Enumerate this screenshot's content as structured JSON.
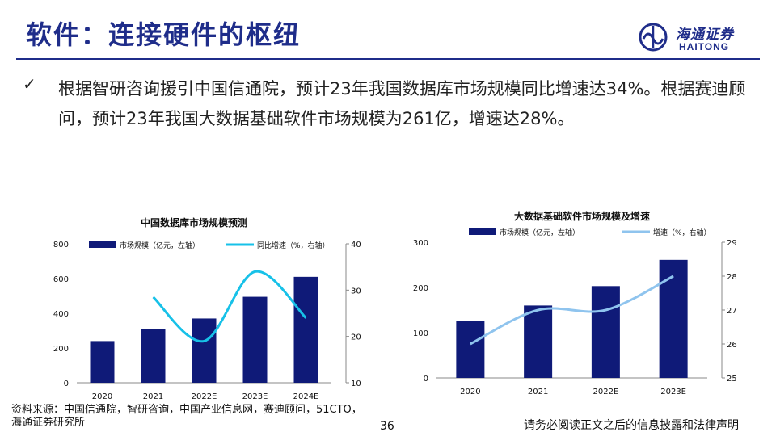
{
  "header": {
    "title": "软件：连接硬件的枢纽",
    "logo_cn": "海通证券",
    "logo_en": "HAITONG"
  },
  "bullet": {
    "mark": "✓",
    "text": "根据智研咨询援引中国信通院，预计23年我国数据库市场规模同比增速达34%。根据赛迪顾问，预计23年我国大数据基础软件市场规模为261亿，增速达28%。"
  },
  "chart_data": [
    {
      "type": "bar",
      "title": "中国数据库市场规模预测",
      "categories": [
        "2020",
        "2021",
        "2022E",
        "2023E",
        "2024E"
      ],
      "series": [
        {
          "name": "市场规模（亿元，左轴）",
          "type": "bar",
          "axis": "left",
          "values": [
            240,
            310,
            370,
            495,
            610
          ]
        },
        {
          "name": "同比增速（%，右轴）",
          "type": "line",
          "axis": "right",
          "values": [
            null,
            28.5,
            19,
            34,
            24
          ]
        }
      ],
      "y_left": {
        "min": 0,
        "max": 800,
        "ticks": [
          "0",
          "200",
          "400",
          "600",
          "800"
        ]
      },
      "y_right": {
        "min": 10,
        "max": 40,
        "ticks": [
          "10",
          "20",
          "30",
          "40"
        ]
      },
      "colors": {
        "bar": "#0f1a78",
        "line": "#17c1e8"
      },
      "legend": "top"
    },
    {
      "type": "bar",
      "title": "大数据基础软件市场规模及增速",
      "categories": [
        "2020",
        "2021",
        "2022E",
        "2023E"
      ],
      "series": [
        {
          "name": "市场规模（亿元，左轴）",
          "type": "bar",
          "axis": "left",
          "values": [
            126,
            160,
            203,
            261
          ]
        },
        {
          "name": "增速（%，右轴）",
          "type": "line",
          "axis": "right",
          "values": [
            26,
            27,
            27,
            28
          ]
        }
      ],
      "y_left": {
        "min": 0,
        "max": 300,
        "ticks": [
          "0",
          "100",
          "200",
          "300"
        ]
      },
      "y_right": {
        "min": 25,
        "max": 29,
        "ticks": [
          "25",
          "26",
          "27",
          "28",
          "29"
        ]
      },
      "colors": {
        "bar": "#0f1a78",
        "line": "#8fc4ee"
      },
      "legend": "top"
    }
  ],
  "footer": {
    "source": "资料来源：中国信通院，智研咨询，中国产业信息网，赛迪顾问，51CTO，海通证券研究所",
    "page": "36",
    "disclaimer": "请务必阅读正文之后的信息披露和法律声明"
  }
}
